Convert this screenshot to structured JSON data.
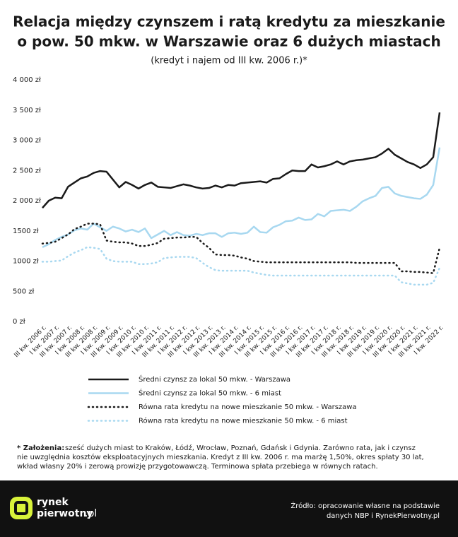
{
  "chart_data": {
    "type": "line",
    "title": [
      "Relacja między czynszem i ratą kredytu za mieszkanie",
      "o pow. 50 mkw. w Warszawie oraz 6 dużych miastach"
    ],
    "subtitle": "(kredyt i najem od III kw. 2006 r.)*",
    "categories": [
      "III kw. 2006 r.",
      null,
      "I kw. 2007 r.",
      null,
      "III kw. 2007 r.",
      null,
      "I kw. 2008 r.",
      null,
      "III kw. 2008 r.",
      null,
      "I kw. 2009 r.",
      null,
      "III kw. 2009 r.",
      null,
      "I kw. 2010 r.",
      null,
      "III kw. 2010 r.",
      null,
      "I kw. 2011 r.",
      null,
      "III kw. 2011 r.",
      null,
      "I kw. 2012 r.",
      null,
      "III kw. 2012 r.",
      null,
      "I kw. 2013 r.",
      null,
      "III kw. 2013 r.",
      null,
      "I kw. 2014 r.",
      null,
      "III kw. 2014 r.",
      null,
      "I kw. 2015 r.",
      null,
      "III kw. 2015 r.",
      null,
      "I kw. 2016 r.",
      null,
      "III kw. 2016 r.",
      null,
      "I kw. 2017 r.",
      null,
      "III kw. 2017 r.",
      null,
      "I kw. 2018 r.",
      null,
      "III kw. 2018 r.",
      null,
      "I kw. 2019 r.",
      null,
      "III kw. 2019 r.",
      null,
      "I kw. 2020 r.",
      null,
      "III kw. 2020 r.",
      null,
      "I kw. 2021 r.",
      null,
      "III kw. 2021 r.",
      null,
      "I kw. 2022 r."
    ],
    "series": [
      {
        "name": "Średni czynsz za lokal 50 mkw. - Warszawa",
        "color": "#1a1a1a",
        "dash": "solid",
        "values": [
          1880,
          2000,
          2050,
          2040,
          2230,
          2300,
          2370,
          2400,
          2460,
          2490,
          2480,
          2350,
          2220,
          2310,
          2260,
          2200,
          2260,
          2300,
          2230,
          2220,
          2210,
          2240,
          2270,
          2250,
          2220,
          2200,
          2210,
          2250,
          2220,
          2260,
          2250,
          2290,
          2300,
          2310,
          2320,
          2300,
          2360,
          2370,
          2440,
          2500,
          2490,
          2490,
          2600,
          2550,
          2570,
          2600,
          2650,
          2600,
          2650,
          2670,
          2680,
          2700,
          2720,
          2780,
          2860,
          2760,
          2700,
          2640,
          2600,
          2540,
          2600,
          2720,
          3460
        ]
      },
      {
        "name": "Średni czynsz za lokal 50 mkw. - 6 miast",
        "color": "#a8d8f0",
        "dash": "solid",
        "values": [
          1230,
          1280,
          1350,
          1400,
          1440,
          1510,
          1540,
          1520,
          1620,
          1560,
          1500,
          1570,
          1540,
          1490,
          1520,
          1480,
          1540,
          1380,
          1440,
          1500,
          1430,
          1480,
          1430,
          1420,
          1450,
          1430,
          1460,
          1460,
          1400,
          1460,
          1470,
          1450,
          1470,
          1570,
          1480,
          1470,
          1560,
          1600,
          1660,
          1670,
          1720,
          1680,
          1690,
          1780,
          1740,
          1830,
          1840,
          1850,
          1830,
          1900,
          1990,
          2040,
          2080,
          2210,
          2230,
          2120,
          2080,
          2060,
          2040,
          2030,
          2100,
          2260,
          2880
        ]
      },
      {
        "name": "Równa rata kredytu na nowe mieszkanie 50 mkw. - Warszawa",
        "color": "#1a1a1a",
        "dash": "dot",
        "values": [
          1290,
          1300,
          1320,
          1380,
          1440,
          1530,
          1570,
          1620,
          1620,
          1610,
          1340,
          1320,
          1310,
          1310,
          1290,
          1250,
          1250,
          1270,
          1300,
          1370,
          1380,
          1390,
          1390,
          1400,
          1400,
          1300,
          1220,
          1110,
          1100,
          1100,
          1090,
          1060,
          1040,
          1000,
          990,
          980,
          980,
          980,
          980,
          980,
          980,
          980,
          980,
          980,
          980,
          980,
          980,
          980,
          980,
          970,
          970,
          970,
          970,
          970,
          970,
          970,
          830,
          830,
          820,
          820,
          810,
          800,
          1220
        ]
      },
      {
        "name": "Równa rata kredytu na nowe mieszkanie 50 mkw. - 6 miast",
        "color": "#a8d8f0",
        "dash": "dot",
        "values": [
          990,
          990,
          1000,
          1010,
          1080,
          1140,
          1180,
          1230,
          1220,
          1200,
          1040,
          1000,
          990,
          990,
          990,
          950,
          950,
          960,
          980,
          1050,
          1060,
          1070,
          1070,
          1070,
          1050,
          970,
          900,
          850,
          840,
          840,
          840,
          840,
          840,
          810,
          790,
          770,
          760,
          760,
          760,
          760,
          760,
          760,
          760,
          760,
          760,
          760,
          760,
          760,
          760,
          760,
          760,
          760,
          760,
          760,
          760,
          760,
          650,
          630,
          610,
          610,
          610,
          640,
          890
        ]
      }
    ],
    "ylim": [
      0,
      4000
    ],
    "yticks": [
      {
        "value": 0,
        "label": "0 zł"
      },
      {
        "value": 500,
        "label": "500 zł"
      },
      {
        "value": 1000,
        "label": "1000 zł"
      },
      {
        "value": 1500,
        "label": "1500 zł"
      },
      {
        "value": 2000,
        "label": "2 000 zł"
      },
      {
        "value": 2500,
        "label": "2 500 zł"
      },
      {
        "value": 3000,
        "label": "3 000 zł"
      },
      {
        "value": 3500,
        "label": "3 500 zł"
      },
      {
        "value": 4000,
        "label": "4 000 zł"
      }
    ],
    "grid": false,
    "legend": "bottom"
  },
  "note": {
    "label": "* Założenia:",
    "lines": [
      "sześć dużych miast to Kraków, Łódź, Wrocław, Poznań, Gdańsk i Gdynia. Zarówno rata, jak i czynsz",
      "nie uwzględnia kosztów eksploatacyjnych mieszkania. Kredyt z III kw. 2006 r. ma marżę 1,50%, okres spłaty 30 lat,",
      "wkład własny 20% i zerową prowizję przygotowawczą. Terminowa spłata przebiega w równych ratach."
    ]
  },
  "footer": {
    "logo": [
      "rynek",
      "pierwotny",
      ".pl"
    ],
    "source": [
      "Źródło: opracowanie własne na podstawie",
      "danych NBP i RynekPierwotny.pl"
    ]
  }
}
